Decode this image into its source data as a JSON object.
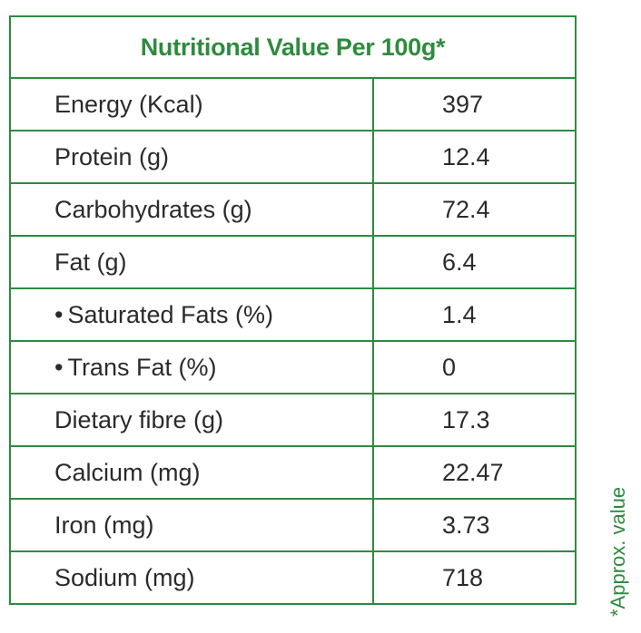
{
  "table": {
    "title": "Nutritional Value Per 100g*",
    "rows": [
      {
        "label": "Energy (Kcal)",
        "value": "397",
        "sub": false
      },
      {
        "label": "Protein (g)",
        "value": "12.4",
        "sub": false
      },
      {
        "label": "Carbohydrates (g)",
        "value": "72.4",
        "sub": false
      },
      {
        "label": "Fat (g)",
        "value": "6.4",
        "sub": false
      },
      {
        "label": "Saturated Fats (%)",
        "value": "1.4",
        "sub": true
      },
      {
        "label": "Trans Fat (%)",
        "value": "0",
        "sub": true
      },
      {
        "label": "Dietary fibre (g)",
        "value": "17.3",
        "sub": false
      },
      {
        "label": "Calcium  (mg)",
        "value": "22.47",
        "sub": false
      },
      {
        "label": "Iron (mg)",
        "value": "3.73",
        "sub": false
      },
      {
        "label": "Sodium (mg)",
        "value": "718",
        "sub": false
      }
    ],
    "bullet": "•"
  },
  "footnote": "*Approx. value",
  "colors": {
    "accent": "#2e8b3e",
    "text": "#2b2b2b"
  }
}
